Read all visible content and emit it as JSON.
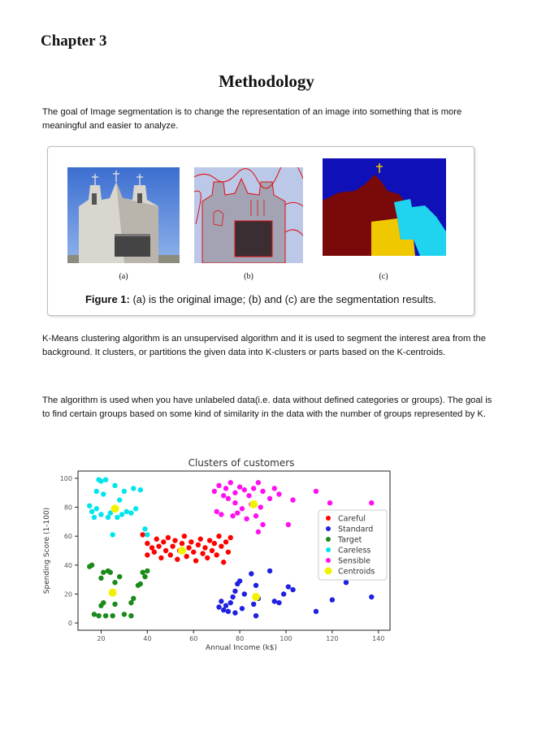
{
  "chapter": "Chapter 3",
  "title": "Methodology",
  "paragraphs": {
    "p1": "The goal of Image segmentation is to change the representation of an image into something that is more meaningful and easier to analyze.",
    "p2": "K-Means clustering algorithm is an unsupervised algorithm and it is used to segment the interest area from the background. It clusters, or partitions the given data into K-clusters or parts based on the K-centroids.",
    "p3": "The algorithm is used when you have unlabeled data(i.e. data without defined categories or groups). The goal is to find certain groups based on some kind of similarity in the data with the number of groups represented by K."
  },
  "figure": {
    "label_a": "(a)",
    "label_b": "(b)",
    "label_c": "(c)",
    "caption_bold": "Figure 1:",
    "caption_text": " (a) is the original image; (b) and (c) are the segmentation results."
  },
  "chart_data": {
    "type": "scatter",
    "title": "Clusters of customers",
    "xlabel": "Annual Income (k$)",
    "ylabel": "Spending Score (1-100)",
    "xlim": [
      10,
      145
    ],
    "ylim": [
      -5,
      105
    ],
    "xticks": [
      20,
      40,
      60,
      80,
      100,
      120,
      140
    ],
    "yticks": [
      0,
      20,
      40,
      60,
      80,
      100
    ],
    "legend_position": "center-right",
    "series": [
      {
        "name": "Careful",
        "color": "#ff0000",
        "points": [
          [
            38,
            61
          ],
          [
            40,
            55
          ],
          [
            40,
            47
          ],
          [
            42,
            52
          ],
          [
            43,
            49
          ],
          [
            44,
            58
          ],
          [
            45,
            53
          ],
          [
            46,
            45
          ],
          [
            47,
            56
          ],
          [
            48,
            50
          ],
          [
            49,
            59
          ],
          [
            50,
            47
          ],
          [
            51,
            53
          ],
          [
            52,
            57
          ],
          [
            53,
            44
          ],
          [
            54,
            50
          ],
          [
            55,
            55
          ],
          [
            56,
            60
          ],
          [
            57,
            46
          ],
          [
            58,
            52
          ],
          [
            59,
            56
          ],
          [
            60,
            49
          ],
          [
            61,
            43
          ],
          [
            62,
            54
          ],
          [
            63,
            58
          ],
          [
            64,
            48
          ],
          [
            65,
            52
          ],
          [
            66,
            45
          ],
          [
            67,
            57
          ],
          [
            68,
            50
          ],
          [
            69,
            55
          ],
          [
            70,
            47
          ],
          [
            71,
            60
          ],
          [
            72,
            53
          ],
          [
            73,
            42
          ],
          [
            74,
            56
          ],
          [
            75,
            49
          ],
          [
            76,
            59
          ]
        ]
      },
      {
        "name": "Standard",
        "color": "#2020e0",
        "points": [
          [
            71,
            11
          ],
          [
            72,
            15
          ],
          [
            73,
            9
          ],
          [
            74,
            12
          ],
          [
            75,
            8
          ],
          [
            76,
            14
          ],
          [
            77,
            18
          ],
          [
            78,
            22
          ],
          [
            78,
            7
          ],
          [
            79,
            27
          ],
          [
            80,
            29
          ],
          [
            81,
            10
          ],
          [
            82,
            20
          ],
          [
            85,
            34
          ],
          [
            86,
            13
          ],
          [
            87,
            5
          ],
          [
            87,
            26
          ],
          [
            88,
            17
          ],
          [
            93,
            36
          ],
          [
            95,
            15
          ],
          [
            97,
            14
          ],
          [
            99,
            20
          ],
          [
            101,
            25
          ],
          [
            103,
            23
          ],
          [
            113,
            8
          ],
          [
            120,
            16
          ],
          [
            126,
            28
          ],
          [
            137,
            18
          ]
        ]
      },
      {
        "name": "Target",
        "color": "#1a8a1a",
        "points": [
          [
            15,
            39
          ],
          [
            16,
            40
          ],
          [
            17,
            6
          ],
          [
            19,
            5
          ],
          [
            20,
            12
          ],
          [
            20,
            31
          ],
          [
            21,
            35
          ],
          [
            21,
            14
          ],
          [
            22,
            5
          ],
          [
            23,
            36
          ],
          [
            24,
            35
          ],
          [
            25,
            5
          ],
          [
            26,
            28
          ],
          [
            26,
            13
          ],
          [
            28,
            32
          ],
          [
            30,
            6
          ],
          [
            33,
            14
          ],
          [
            33,
            5
          ],
          [
            34,
            17
          ],
          [
            36,
            26
          ],
          [
            37,
            27
          ],
          [
            38,
            35
          ],
          [
            39,
            32
          ],
          [
            40,
            36
          ]
        ]
      },
      {
        "name": "Careless",
        "color": "#00e5ee",
        "points": [
          [
            15,
            81
          ],
          [
            16,
            77
          ],
          [
            17,
            73
          ],
          [
            18,
            91
          ],
          [
            18,
            79
          ],
          [
            19,
            99
          ],
          [
            20,
            98
          ],
          [
            20,
            75
          ],
          [
            21,
            89
          ],
          [
            22,
            99
          ],
          [
            23,
            73
          ],
          [
            24,
            76
          ],
          [
            25,
            61
          ],
          [
            26,
            95
          ],
          [
            27,
            73
          ],
          [
            28,
            85
          ],
          [
            29,
            75
          ],
          [
            30,
            91
          ],
          [
            31,
            77
          ],
          [
            33,
            76
          ],
          [
            34,
            93
          ],
          [
            35,
            79
          ],
          [
            37,
            92
          ],
          [
            39,
            65
          ],
          [
            40,
            61
          ]
        ]
      },
      {
        "name": "Sensible",
        "color": "#ff10f0",
        "points": [
          [
            69,
            91
          ],
          [
            70,
            77
          ],
          [
            71,
            95
          ],
          [
            72,
            75
          ],
          [
            73,
            88
          ],
          [
            74,
            93
          ],
          [
            75,
            86
          ],
          [
            76,
            97
          ],
          [
            77,
            74
          ],
          [
            78,
            90
          ],
          [
            78,
            83
          ],
          [
            79,
            76
          ],
          [
            80,
            94
          ],
          [
            81,
            79
          ],
          [
            82,
            92
          ],
          [
            83,
            72
          ],
          [
            84,
            88
          ],
          [
            85,
            82
          ],
          [
            86,
            93
          ],
          [
            87,
            74
          ],
          [
            88,
            97
          ],
          [
            88,
            63
          ],
          [
            89,
            80
          ],
          [
            90,
            91
          ],
          [
            90,
            68
          ],
          [
            93,
            86
          ],
          [
            95,
            93
          ],
          [
            97,
            89
          ],
          [
            101,
            68
          ],
          [
            103,
            85
          ],
          [
            113,
            91
          ],
          [
            119,
            83
          ],
          [
            126,
            74
          ],
          [
            137,
            83
          ]
        ]
      },
      {
        "name": "Centroids",
        "color": "#f2f200",
        "points": [
          [
            26,
            79
          ],
          [
            25,
            21
          ],
          [
            55,
            50
          ],
          [
            87,
            18
          ],
          [
            86,
            82
          ]
        ]
      }
    ]
  },
  "colors": {
    "frame": "#222222",
    "tick_text": "#555555"
  }
}
